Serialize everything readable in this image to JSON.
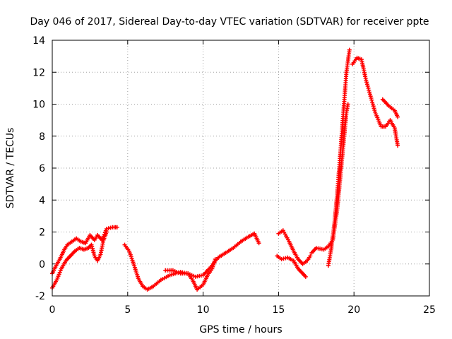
{
  "chart_data": {
    "type": "scatter",
    "title": "Day 046 of 2017, Sidereal Day-to-day VTEC variation (SDTVAR) for receiver ppte",
    "xlabel": "GPS time / hours",
    "ylabel": "SDTVAR / TECUs",
    "xlim": [
      0,
      25
    ],
    "ylim": [
      -2,
      14
    ],
    "x_ticks": [
      "0",
      "5",
      "10",
      "15",
      "20",
      "25"
    ],
    "y_ticks": [
      "-2",
      "0",
      "2",
      "4",
      "6",
      "8",
      "10",
      "12",
      "14"
    ],
    "grid": true,
    "legend": "none",
    "marker": "plus",
    "color": "#ff0000",
    "series": [
      {
        "segments": [
          [
            [
              0.0,
              -0.6
            ],
            [
              0.2,
              -0.2
            ],
            [
              0.5,
              0.3
            ],
            [
              0.8,
              0.9
            ],
            [
              1.0,
              1.2
            ],
            [
              1.3,
              1.4
            ],
            [
              1.6,
              1.6
            ],
            [
              1.9,
              1.4
            ],
            [
              2.2,
              1.3
            ],
            [
              2.5,
              1.8
            ],
            [
              2.8,
              1.5
            ],
            [
              3.0,
              1.8
            ],
            [
              3.3,
              1.5
            ],
            [
              3.6,
              2.2
            ],
            [
              4.0,
              2.3
            ],
            [
              4.3,
              2.3
            ]
          ],
          [
            [
              0.0,
              -1.5
            ],
            [
              0.3,
              -1.0
            ],
            [
              0.6,
              -0.3
            ],
            [
              0.9,
              0.2
            ],
            [
              1.2,
              0.5
            ],
            [
              1.5,
              0.8
            ],
            [
              1.8,
              1.0
            ],
            [
              2.1,
              0.9
            ],
            [
              2.4,
              1.0
            ],
            [
              2.6,
              1.2
            ],
            [
              2.8,
              0.5
            ],
            [
              3.0,
              0.2
            ],
            [
              3.2,
              0.6
            ],
            [
              3.4,
              1.5
            ],
            [
              3.6,
              2.0
            ]
          ],
          [
            [
              4.8,
              1.2
            ],
            [
              5.1,
              0.8
            ],
            [
              5.4,
              0.0
            ],
            [
              5.7,
              -0.9
            ],
            [
              6.0,
              -1.4
            ],
            [
              6.3,
              -1.6
            ],
            [
              6.7,
              -1.4
            ],
            [
              7.2,
              -1.0
            ],
            [
              7.8,
              -0.7
            ],
            [
              8.5,
              -0.5
            ],
            [
              9.0,
              -0.6
            ],
            [
              9.3,
              -1.0
            ],
            [
              9.6,
              -1.6
            ],
            [
              10.0,
              -1.3
            ],
            [
              10.3,
              -0.7
            ],
            [
              10.6,
              -0.3
            ],
            [
              10.8,
              0.3
            ]
          ],
          [
            [
              7.5,
              -0.4
            ],
            [
              8.0,
              -0.4
            ],
            [
              8.5,
              -0.6
            ],
            [
              9.0,
              -0.6
            ],
            [
              9.5,
              -0.8
            ],
            [
              10.0,
              -0.7
            ],
            [
              10.5,
              -0.2
            ],
            [
              11.0,
              0.4
            ],
            [
              11.5,
              0.7
            ],
            [
              12.0,
              1.0
            ],
            [
              12.5,
              1.4
            ],
            [
              13.0,
              1.7
            ],
            [
              13.4,
              1.9
            ],
            [
              13.7,
              1.3
            ]
          ],
          [
            [
              14.9,
              0.5
            ],
            [
              15.2,
              0.3
            ],
            [
              15.6,
              0.4
            ],
            [
              16.0,
              0.2
            ],
            [
              16.3,
              -0.3
            ],
            [
              16.6,
              -0.6
            ],
            [
              16.8,
              -0.8
            ]
          ],
          [
            [
              15.0,
              1.9
            ],
            [
              15.3,
              2.1
            ],
            [
              15.7,
              1.4
            ],
            [
              16.0,
              0.8
            ],
            [
              16.3,
              0.3
            ],
            [
              16.6,
              0.0
            ],
            [
              16.9,
              0.2
            ],
            [
              17.1,
              0.5
            ]
          ],
          [
            [
              17.2,
              0.7
            ],
            [
              17.5,
              1.0
            ],
            [
              18.0,
              0.9
            ],
            [
              18.3,
              1.1
            ],
            [
              18.6,
              1.5
            ],
            [
              18.9,
              3.5
            ],
            [
              19.1,
              5.5
            ],
            [
              19.3,
              7.5
            ],
            [
              19.5,
              9.5
            ],
            [
              19.6,
              10.0
            ]
          ],
          [
            [
              18.3,
              -0.1
            ],
            [
              18.5,
              1.0
            ],
            [
              18.7,
              2.5
            ],
            [
              18.9,
              4.5
            ],
            [
              19.1,
              7.0
            ],
            [
              19.3,
              9.5
            ],
            [
              19.5,
              12.0
            ],
            [
              19.7,
              13.4
            ]
          ],
          [
            [
              19.9,
              12.5
            ],
            [
              20.2,
              12.9
            ],
            [
              20.5,
              12.8
            ],
            [
              20.8,
              11.5
            ],
            [
              21.1,
              10.5
            ],
            [
              21.4,
              9.5
            ],
            [
              21.8,
              8.6
            ],
            [
              22.1,
              8.6
            ],
            [
              22.4,
              9.0
            ],
            [
              22.7,
              8.5
            ],
            [
              22.9,
              7.4
            ]
          ],
          [
            [
              21.9,
              10.3
            ],
            [
              22.3,
              9.9
            ],
            [
              22.7,
              9.6
            ],
            [
              22.9,
              9.2
            ]
          ]
        ]
      }
    ]
  }
}
